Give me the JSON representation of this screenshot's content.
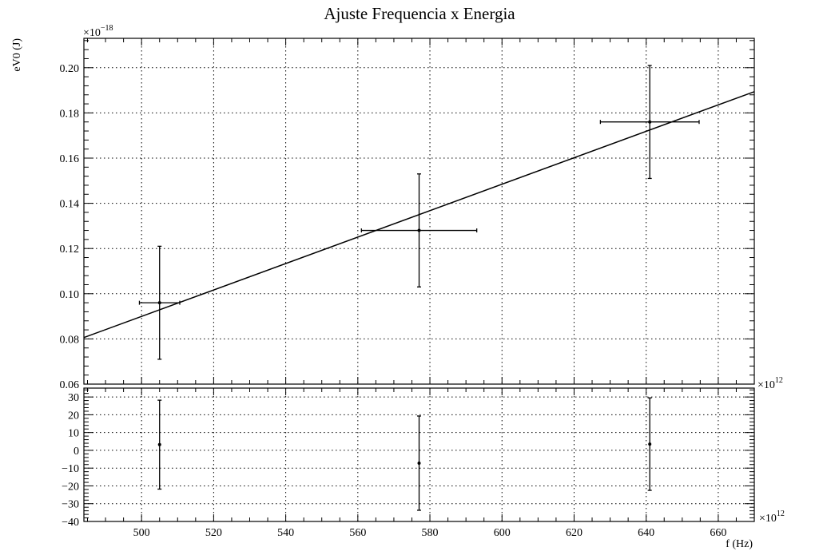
{
  "chart_data": [
    {
      "type": "scatter",
      "panel": "main",
      "title": "Ajuste Frequencia x Energia",
      "ylabel": "eV0 (J)",
      "y_multiplier": "×10^-18",
      "x_multiplier": "×10^12",
      "xlim": [
        484,
        670
      ],
      "ylim": [
        0.06,
        0.213
      ],
      "x_ticks": [
        500,
        520,
        540,
        560,
        580,
        600,
        620,
        640,
        660
      ],
      "y_ticks": [
        0.06,
        0.08,
        0.1,
        0.12,
        0.14,
        0.16,
        0.18,
        0.2
      ],
      "y_tick_labels": [
        "0.06",
        "0.08",
        "0.10",
        "0.12",
        "0.14",
        "0.16",
        "0.18",
        "0.20"
      ],
      "grid": true,
      "points": [
        {
          "x": 505,
          "y": 0.096,
          "xerr": 5.6,
          "yerr": 0.025
        },
        {
          "x": 577,
          "y": 0.128,
          "xerr": 16,
          "yerr": 0.025
        },
        {
          "x": 641,
          "y": 0.176,
          "xerr": 13.7,
          "yerr": 0.025
        }
      ],
      "fit_line": {
        "x": [
          484,
          670
        ],
        "y": [
          0.0806,
          0.1894
        ]
      }
    },
    {
      "type": "scatter",
      "panel": "residuals",
      "xlabel": "f (Hz)",
      "x_multiplier": "×10^12",
      "y_multiplier": "×10^12",
      "xlim": [
        484,
        670
      ],
      "ylim": [
        -40,
        35
      ],
      "x_ticks": [
        500,
        520,
        540,
        560,
        580,
        600,
        620,
        640,
        660
      ],
      "x_tick_labels": [
        "500",
        "520",
        "540",
        "560",
        "580",
        "600",
        "620",
        "640",
        "660"
      ],
      "y_ticks": [
        -40,
        -30,
        -20,
        -10,
        0,
        10,
        20,
        30
      ],
      "y_tick_labels": [
        "−40",
        "−30",
        "−20",
        "−10",
        "0",
        "10",
        "20",
        "30"
      ],
      "grid": true,
      "points": [
        {
          "x": 505,
          "y": 3.2,
          "yerr": 25
        },
        {
          "x": 577,
          "y": -7.2,
          "yerr": 26.5
        },
        {
          "x": 641,
          "y": 3.5,
          "yerr": 26
        }
      ]
    }
  ]
}
